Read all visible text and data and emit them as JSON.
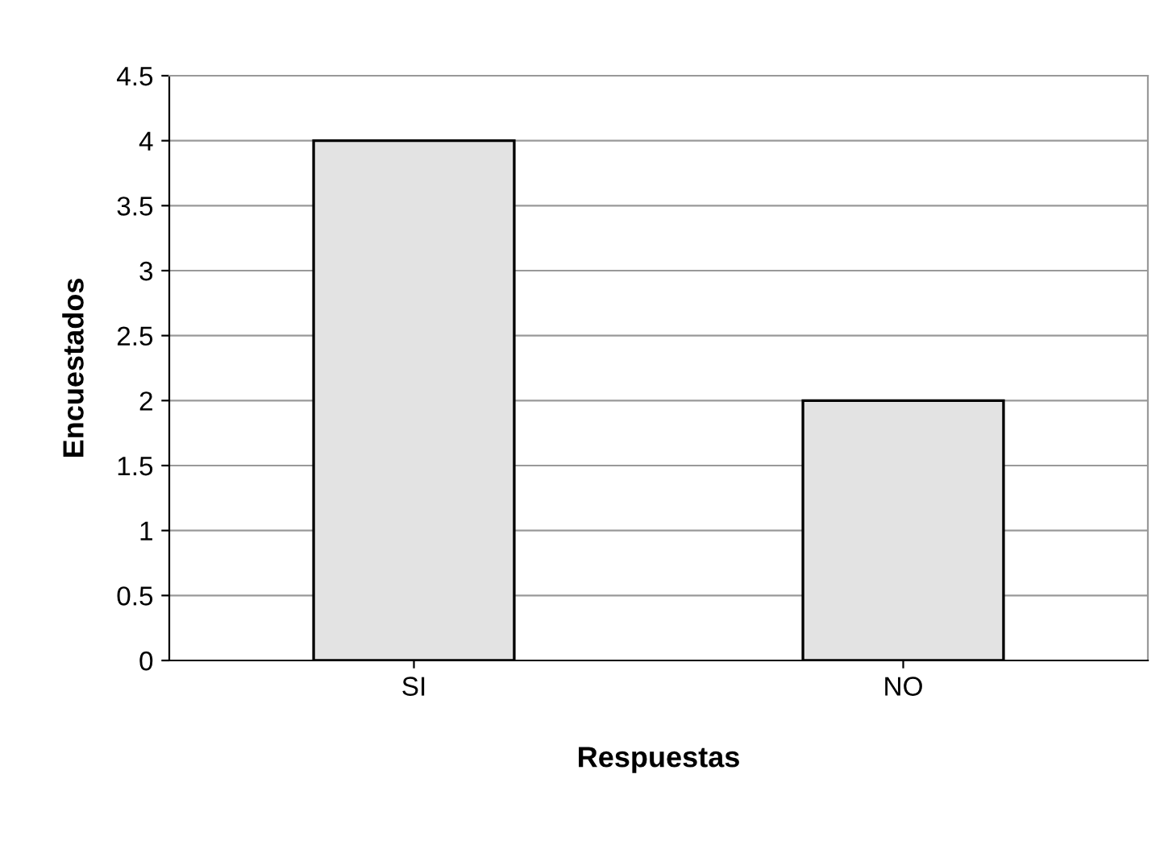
{
  "chart_data": {
    "type": "bar",
    "xlabel": "Respuestas",
    "ylabel": "Encuestados",
    "categories": [
      "SI",
      "NO"
    ],
    "values": [
      4,
      2
    ],
    "color": "#e3e3e3",
    "ylim": [
      0,
      4.5
    ],
    "yticks": [
      0,
      0.5,
      1,
      1.5,
      2,
      2.5,
      3,
      3.5,
      4,
      4.5
    ],
    "grid": "y"
  }
}
